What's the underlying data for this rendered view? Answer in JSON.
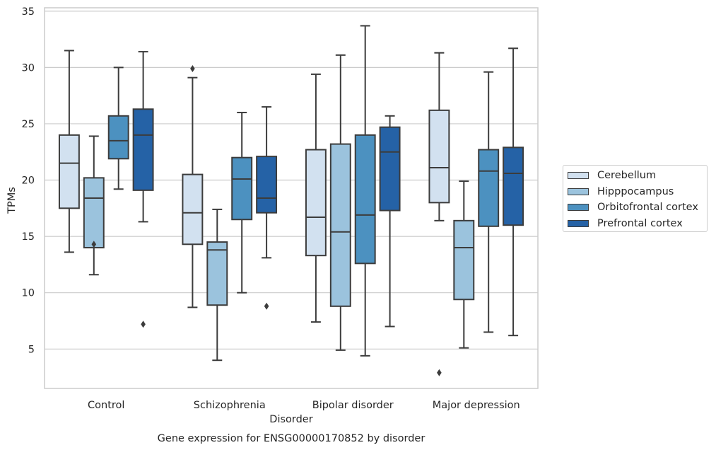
{
  "chart_data": {
    "type": "box",
    "title": "Gene expression for ENSG00000170852 by disorder",
    "xlabel": "Disorder",
    "ylabel": "TPMs",
    "ylim": [
      1.5,
      35.3
    ],
    "yticks": [
      5,
      10,
      15,
      20,
      25,
      30,
      35
    ],
    "grid": "horizontal",
    "legend_position": "right",
    "categories": [
      "Control",
      "Schizophrenia",
      "Bipolar disorder",
      "Major depression"
    ],
    "series": [
      {
        "name": "Cerebellum",
        "color": "#d2e1f0",
        "boxes": [
          {
            "whisker_low": 13.6,
            "q1": 17.5,
            "median": 21.5,
            "q3": 24.0,
            "whisker_high": 31.5,
            "outliers": []
          },
          {
            "whisker_low": 8.7,
            "q1": 14.3,
            "median": 17.1,
            "q3": 20.5,
            "whisker_high": 29.1,
            "outliers": [
              29.9
            ]
          },
          {
            "whisker_low": 7.4,
            "q1": 13.3,
            "median": 16.7,
            "q3": 22.7,
            "whisker_high": 29.4,
            "outliers": []
          },
          {
            "whisker_low": 16.4,
            "q1": 18.0,
            "median": 21.1,
            "q3": 26.2,
            "whisker_high": 31.3,
            "outliers": [
              2.9
            ]
          }
        ]
      },
      {
        "name": "Hipppocampus",
        "color": "#9bc3dd",
        "boxes": [
          {
            "whisker_low": 11.6,
            "q1": 14.0,
            "median": 18.4,
            "q3": 20.2,
            "whisker_high": 23.9,
            "outliers": [
              14.3
            ]
          },
          {
            "whisker_low": 4.0,
            "q1": 8.9,
            "median": 13.8,
            "q3": 14.5,
            "whisker_high": 17.4,
            "outliers": []
          },
          {
            "whisker_low": 4.9,
            "q1": 8.8,
            "median": 15.4,
            "q3": 23.2,
            "whisker_high": 31.1,
            "outliers": []
          },
          {
            "whisker_low": 5.1,
            "q1": 9.4,
            "median": 14.0,
            "q3": 16.4,
            "whisker_high": 19.9,
            "outliers": []
          }
        ]
      },
      {
        "name": "Orbitofrontal cortex",
        "color": "#4c91c0",
        "boxes": [
          {
            "whisker_low": 19.2,
            "q1": 21.9,
            "median": 23.5,
            "q3": 25.7,
            "whisker_high": 30.0,
            "outliers": []
          },
          {
            "whisker_low": 10.0,
            "q1": 16.5,
            "median": 20.1,
            "q3": 22.0,
            "whisker_high": 26.0,
            "outliers": []
          },
          {
            "whisker_low": 4.4,
            "q1": 12.6,
            "median": 16.9,
            "q3": 24.0,
            "whisker_high": 33.7,
            "outliers": []
          },
          {
            "whisker_low": 6.5,
            "q1": 15.9,
            "median": 20.8,
            "q3": 22.7,
            "whisker_high": 29.6,
            "outliers": []
          }
        ]
      },
      {
        "name": "Prefrontal cortex",
        "color": "#2562a6",
        "boxes": [
          {
            "whisker_low": 16.3,
            "q1": 19.1,
            "median": 24.0,
            "q3": 26.3,
            "whisker_high": 31.4,
            "outliers": [
              7.2
            ]
          },
          {
            "whisker_low": 13.1,
            "q1": 17.1,
            "median": 18.4,
            "q3": 22.1,
            "whisker_high": 26.5,
            "outliers": [
              8.8
            ]
          },
          {
            "whisker_low": 7.0,
            "q1": 17.3,
            "median": 22.5,
            "q3": 24.7,
            "whisker_high": 25.7,
            "outliers": []
          },
          {
            "whisker_low": 6.2,
            "q1": 16.0,
            "median": 20.6,
            "q3": 22.9,
            "whisker_high": 31.7,
            "outliers": []
          }
        ]
      }
    ]
  }
}
